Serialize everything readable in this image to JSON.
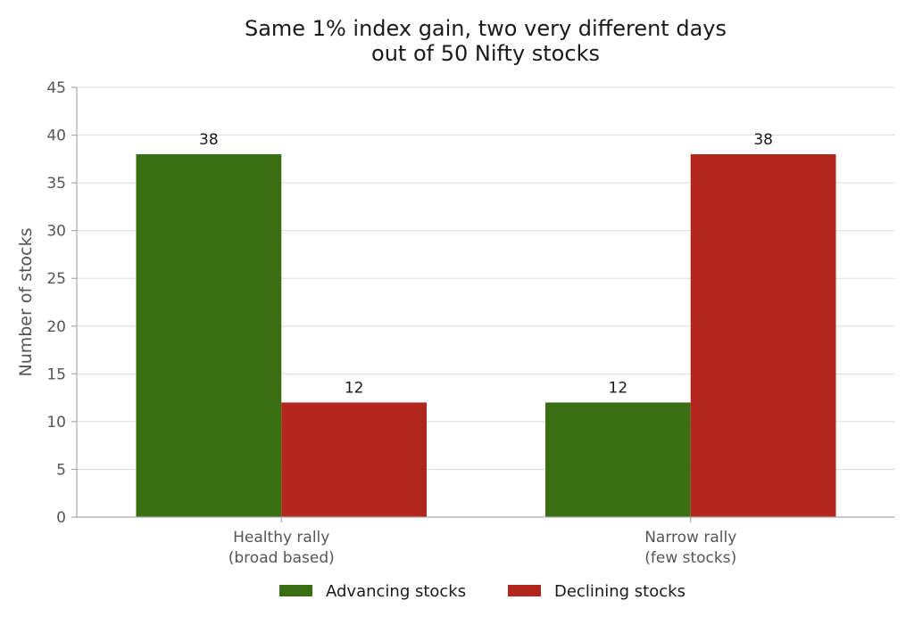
{
  "chart_data": {
    "type": "bar",
    "title_lines": [
      "Same 1% index gain, two very different days",
      "out of 50 Nifty stocks"
    ],
    "ylabel": "Number of stocks",
    "xlabel": "",
    "categories": [
      [
        "Healthy rally",
        "(broad based)"
      ],
      [
        "Narrow rally",
        "(few stocks)"
      ]
    ],
    "series": [
      {
        "name": "Advancing stocks",
        "values": [
          38,
          12
        ],
        "color": "#3a6e12"
      },
      {
        "name": "Declining stocks",
        "values": [
          12,
          38
        ],
        "color": "#b2261e"
      }
    ],
    "ylim": [
      0,
      45
    ],
    "yticks": [
      0,
      5,
      10,
      15,
      20,
      25,
      30,
      35,
      40,
      45
    ],
    "grid": true,
    "legend_position": "bottom-center"
  }
}
